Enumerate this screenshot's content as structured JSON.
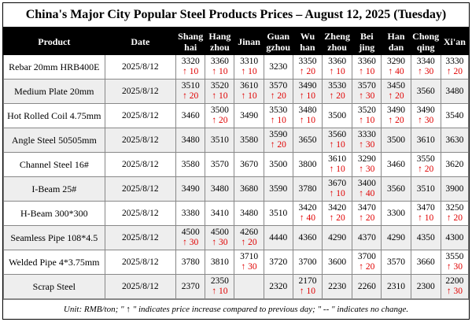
{
  "title": "China's Major City Popular Steel Products Prices – August 12, 2025 (Tuesday)",
  "headers": {
    "product": "Product",
    "date": "Date",
    "cities": [
      [
        "Shang",
        "hai"
      ],
      [
        "Hang",
        "zhou"
      ],
      [
        "Jinan",
        ""
      ],
      [
        "Guan",
        "gzhou"
      ],
      [
        "Wu",
        "han"
      ],
      [
        "Zheng",
        "zhou"
      ],
      [
        "Bei",
        "jing"
      ],
      [
        "Han",
        "dan"
      ],
      [
        "Chong",
        "qing"
      ],
      [
        "Xi'an",
        ""
      ]
    ]
  },
  "rows": [
    {
      "product": "Rebar 20mm HRB400E",
      "date": "2025/8/12",
      "prices": [
        "3320",
        "3360",
        "3310",
        "3230",
        "3350",
        "3360",
        "3360",
        "3290",
        "3340",
        "3330"
      ],
      "changes": [
        "↑ 10",
        "↑ 10",
        "↑ 10",
        "",
        "↑ 20",
        "↑ 10",
        "↑ 10",
        "↑ 40",
        "↑ 30",
        "↑ 20"
      ]
    },
    {
      "product": "Medium Plate 20mm",
      "date": "2025/8/12",
      "prices": [
        "3510",
        "3520",
        "3610",
        "3570",
        "3490",
        "3530",
        "3570",
        "3450",
        "3560",
        "3480"
      ],
      "changes": [
        "↑ 20",
        "↑ 10",
        "↑ 10",
        "↑ 20",
        "↑ 10",
        "↑ 20",
        "↑ 30",
        "↑ 20",
        "",
        ""
      ]
    },
    {
      "product": "Hot Rolled Coil 4.75mm",
      "date": "2025/8/12",
      "prices": [
        "3460",
        "3500",
        "3490",
        "3530",
        "3480",
        "3500",
        "3520",
        "3490",
        "3490",
        "3540"
      ],
      "changes": [
        "",
        "↑ 20",
        "",
        "↑ 10",
        "↑ 10",
        "",
        "↑ 10",
        "↑ 20",
        "↑ 30",
        ""
      ]
    },
    {
      "product": "Angle Steel 50505mm",
      "date": "2025/8/12",
      "prices": [
        "3480",
        "3510",
        "3580",
        "3590",
        "3650",
        "3560",
        "3330",
        "3500",
        "3610",
        "3630"
      ],
      "changes": [
        "",
        "",
        "",
        "↑ 20",
        "",
        "↑ 10",
        "↑ 30",
        "",
        "",
        ""
      ]
    },
    {
      "product": "Channel Steel 16#",
      "date": "2025/8/12",
      "prices": [
        "3580",
        "3570",
        "3670",
        "3500",
        "3800",
        "3610",
        "3290",
        "3460",
        "3550",
        "3620"
      ],
      "changes": [
        "",
        "",
        "",
        "",
        "",
        "↑ 10",
        "↑ 30",
        "",
        "↑ 20",
        ""
      ]
    },
    {
      "product": "I-Beam 25#",
      "date": "2025/8/12",
      "prices": [
        "3490",
        "3480",
        "3680",
        "3590",
        "3780",
        "3670",
        "3400",
        "3560",
        "3510",
        "3900"
      ],
      "changes": [
        "",
        "",
        "",
        "",
        "",
        "↑ 10",
        "↑ 40",
        "",
        "",
        ""
      ]
    },
    {
      "product": "H-Beam 300*300",
      "date": "2025/8/12",
      "prices": [
        "3380",
        "3410",
        "3480",
        "3510",
        "3420",
        "3420",
        "3470",
        "3300",
        "3470",
        "3250"
      ],
      "changes": [
        "",
        "",
        "",
        "",
        "↑ 40",
        "↑ 20",
        "↑ 20",
        "",
        "↑ 10",
        "↑ 20"
      ]
    },
    {
      "product": "Seamless Pipe 108*4.5",
      "date": "2025/8/12",
      "prices": [
        "4500",
        "4500",
        "4260",
        "4440",
        "4360",
        "4290",
        "4370",
        "4290",
        "4350",
        "4300"
      ],
      "changes": [
        "↑ 30",
        "↑ 30",
        "↑ 20",
        "",
        "",
        "",
        "",
        "",
        "",
        ""
      ]
    },
    {
      "product": "Welded Pipe 4*3.75mm",
      "date": "2025/8/12",
      "prices": [
        "3780",
        "3810",
        "3710",
        "3720",
        "3700",
        "3600",
        "3700",
        "3570",
        "3660",
        "3550"
      ],
      "changes": [
        "",
        "",
        "↑ 30",
        "",
        "",
        "",
        "↑ 20",
        "",
        "",
        "↑ 30"
      ]
    },
    {
      "product": "Scrap Steel",
      "date": "2025/8/12",
      "prices": [
        "2370",
        "2350",
        "",
        "2320",
        "2170",
        "2230",
        "2260",
        "2310",
        "2300",
        "2200"
      ],
      "changes": [
        "",
        "↑ 10",
        "",
        "",
        "↑ 10",
        "",
        "",
        "",
        "",
        "↑ 30"
      ]
    }
  ],
  "note": "Unit: RMB/ton; \" ↑ \" indicates price increase compared to previous day; \" -- \" indicates no change.",
  "colors": {
    "up": "#e00000",
    "header_bg": "#000000",
    "stripe": "#eeeeee"
  }
}
